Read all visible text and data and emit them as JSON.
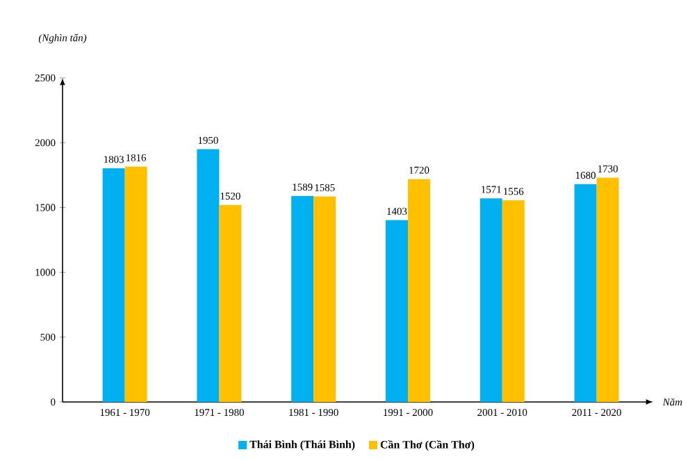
{
  "chart_data": {
    "type": "bar",
    "ylabel": "(Nghìn tấn)",
    "xlabel": "Năm",
    "categories": [
      "1961 - 1970",
      "1971 - 1980",
      "1981 - 1990",
      "1991 - 2000",
      "2001 - 2010",
      "2011 - 2020"
    ],
    "series": [
      {
        "name": "Thái Bình (Thái Bình)",
        "color": "#00b0f0",
        "values": [
          1803,
          1950,
          1589,
          1403,
          1571,
          1680
        ]
      },
      {
        "name": "Cần Thơ (Cần Thơ)",
        "color": "#ffc000",
        "values": [
          1816,
          1520,
          1585,
          1720,
          1556,
          1730
        ]
      }
    ],
    "ylim": [
      0,
      2500
    ],
    "yticks": [
      0,
      500,
      1000,
      1500,
      2000,
      2500
    ],
    "data_labels": true,
    "legend": "bottom"
  }
}
